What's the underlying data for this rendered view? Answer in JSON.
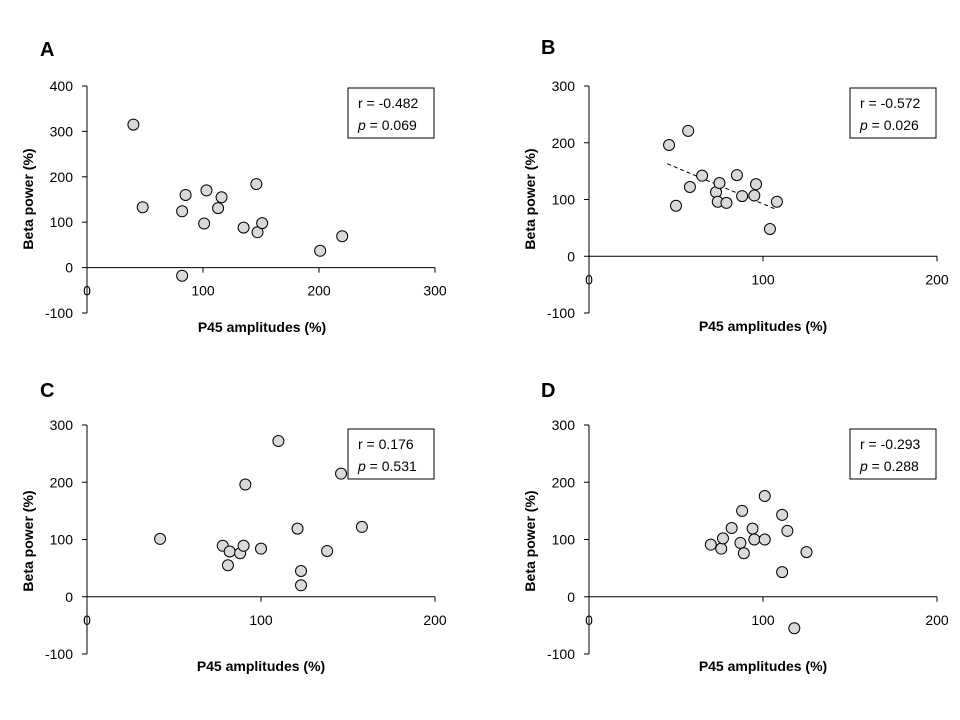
{
  "chart_data": [
    {
      "panel": "A",
      "type": "scatter",
      "xlabel": "P45 amplitudes (%)",
      "ylabel": "Beta power (%)",
      "xlim": [
        0,
        300
      ],
      "ylim": [
        -100,
        400
      ],
      "xticks": [
        0,
        100,
        200,
        300
      ],
      "yticks": [
        -100,
        0,
        100,
        200,
        300,
        400
      ],
      "stat_r": "r = -0.482",
      "stat_p_label": "p",
      "stat_p_value": " = 0.069",
      "trendline": null,
      "points": [
        {
          "x": 40,
          "y": 315
        },
        {
          "x": 48,
          "y": 133
        },
        {
          "x": 82,
          "y": 124
        },
        {
          "x": 85,
          "y": 160
        },
        {
          "x": 82,
          "y": -18
        },
        {
          "x": 101,
          "y": 97
        },
        {
          "x": 103,
          "y": 170
        },
        {
          "x": 113,
          "y": 131
        },
        {
          "x": 116,
          "y": 155
        },
        {
          "x": 135,
          "y": 88
        },
        {
          "x": 146,
          "y": 184
        },
        {
          "x": 147,
          "y": 78
        },
        {
          "x": 151,
          "y": 98
        },
        {
          "x": 201,
          "y": 37
        },
        {
          "x": 220,
          "y": 69
        }
      ]
    },
    {
      "panel": "B",
      "type": "scatter",
      "xlabel": "P45 amplitudes (%)",
      "ylabel": "Beta power (%)",
      "xlim": [
        0,
        200
      ],
      "ylim": [
        -100,
        300
      ],
      "xticks": [
        0,
        100,
        200
      ],
      "yticks": [
        -100,
        0,
        100,
        200,
        300
      ],
      "stat_r": "r = -0.572",
      "stat_p_label": "p",
      "stat_p_value": " = 0.026",
      "trendline": {
        "x1": 45,
        "y1": 163,
        "x2": 108,
        "y2": 82
      },
      "points": [
        {
          "x": 46,
          "y": 196
        },
        {
          "x": 50,
          "y": 89
        },
        {
          "x": 57,
          "y": 221
        },
        {
          "x": 58,
          "y": 122
        },
        {
          "x": 65,
          "y": 142
        },
        {
          "x": 73,
          "y": 113
        },
        {
          "x": 74,
          "y": 96
        },
        {
          "x": 75,
          "y": 129
        },
        {
          "x": 79,
          "y": 94
        },
        {
          "x": 85,
          "y": 143
        },
        {
          "x": 88,
          "y": 106
        },
        {
          "x": 95,
          "y": 107
        },
        {
          "x": 96,
          "y": 127
        },
        {
          "x": 104,
          "y": 48
        },
        {
          "x": 108,
          "y": 96
        }
      ]
    },
    {
      "panel": "C",
      "type": "scatter",
      "xlabel": "P45 amplitudes (%)",
      "ylabel": "Beta power (%)",
      "xlim": [
        0,
        200
      ],
      "ylim": [
        -100,
        300
      ],
      "xticks": [
        0,
        100,
        200
      ],
      "yticks": [
        -100,
        0,
        100,
        200,
        300
      ],
      "stat_r": "r = 0.176",
      "stat_p_label": "p",
      "stat_p_value": " = 0.531",
      "trendline": null,
      "points": [
        {
          "x": 42,
          "y": 101
        },
        {
          "x": 78,
          "y": 89
        },
        {
          "x": 81,
          "y": 55
        },
        {
          "x": 82,
          "y": 79
        },
        {
          "x": 88,
          "y": 76
        },
        {
          "x": 90,
          "y": 89
        },
        {
          "x": 91,
          "y": 196
        },
        {
          "x": 100,
          "y": 84
        },
        {
          "x": 110,
          "y": 272
        },
        {
          "x": 121,
          "y": 119
        },
        {
          "x": 123,
          "y": 45
        },
        {
          "x": 123,
          "y": 20
        },
        {
          "x": 138,
          "y": 80
        },
        {
          "x": 146,
          "y": 215
        },
        {
          "x": 158,
          "y": 122
        }
      ]
    },
    {
      "panel": "D",
      "type": "scatter",
      "xlabel": "P45 amplitudes (%)",
      "ylabel": "Beta power (%)",
      "xlim": [
        0,
        200
      ],
      "ylim": [
        -100,
        300
      ],
      "xticks": [
        0,
        100,
        200
      ],
      "yticks": [
        -100,
        0,
        100,
        200,
        300
      ],
      "stat_r": "r = -0.293",
      "stat_p_label": "p",
      "stat_p_value": " = 0.288",
      "trendline": null,
      "points": [
        {
          "x": 70,
          "y": 91
        },
        {
          "x": 76,
          "y": 84
        },
        {
          "x": 77,
          "y": 102
        },
        {
          "x": 82,
          "y": 120
        },
        {
          "x": 87,
          "y": 94
        },
        {
          "x": 88,
          "y": 150
        },
        {
          "x": 89,
          "y": 76
        },
        {
          "x": 94,
          "y": 119
        },
        {
          "x": 95,
          "y": 100
        },
        {
          "x": 101,
          "y": 176
        },
        {
          "x": 101,
          "y": 100
        },
        {
          "x": 111,
          "y": 143
        },
        {
          "x": 111,
          "y": 43
        },
        {
          "x": 114,
          "y": 115
        },
        {
          "x": 118,
          "y": -55
        },
        {
          "x": 125,
          "y": 78
        }
      ]
    }
  ],
  "style": {
    "marker_fill": "#d9d9d9",
    "marker_stroke": "#000000",
    "axis_color": "#000000",
    "stat_box_border": "#000000"
  }
}
